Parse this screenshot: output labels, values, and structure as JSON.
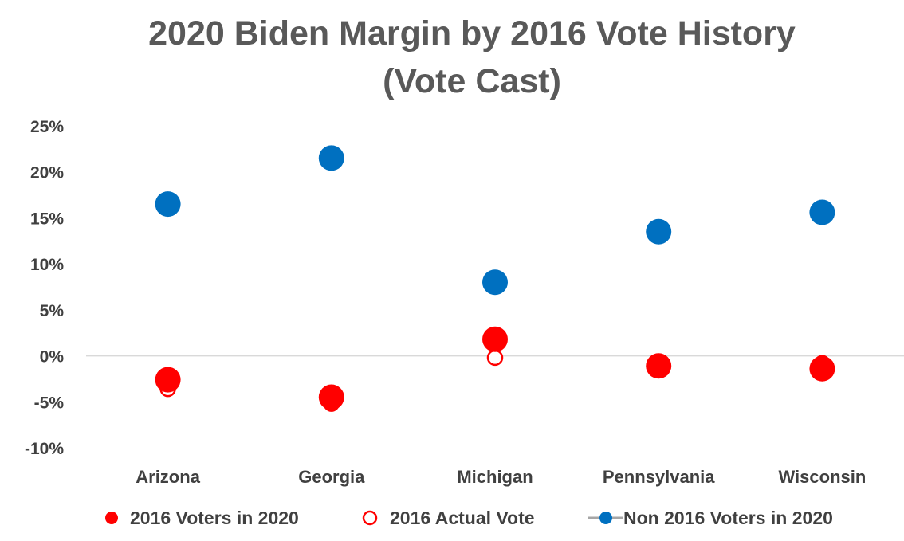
{
  "chart_data": {
    "type": "scatter",
    "title_lines": [
      "2020 Biden Margin by 2016 Vote History",
      "(Vote Cast)"
    ],
    "categories": [
      "Arizona",
      "Georgia",
      "Michigan",
      "Pennsylvania",
      "Wisconsin"
    ],
    "y_ticks": [
      "25%",
      "20%",
      "15%",
      "10%",
      "5%",
      "0%",
      "-5%",
      "-10%"
    ],
    "y_tick_values": [
      25,
      20,
      15,
      10,
      5,
      0,
      -5,
      -10
    ],
    "ylim": [
      -10,
      25
    ],
    "grid": false,
    "zero_line": true,
    "legend_position": "bottom",
    "series": [
      {
        "name": "2016 Voters in 2020",
        "marker": "filled-circle",
        "color": "#ff0000",
        "values": [
          -2.6,
          -4.5,
          1.8,
          -1.1,
          -1.4
        ]
      },
      {
        "name": "2016 Actual Vote",
        "marker": "hollow-circle",
        "color": "#ff0000",
        "values": [
          -3.6,
          -5.2,
          -0.2,
          -0.7,
          -0.8
        ]
      },
      {
        "name": "Non 2016 Voters in 2020",
        "marker": "filled-circle",
        "color": "#0070c0",
        "values": [
          16.5,
          21.5,
          8.0,
          13.5,
          15.6
        ]
      }
    ]
  }
}
